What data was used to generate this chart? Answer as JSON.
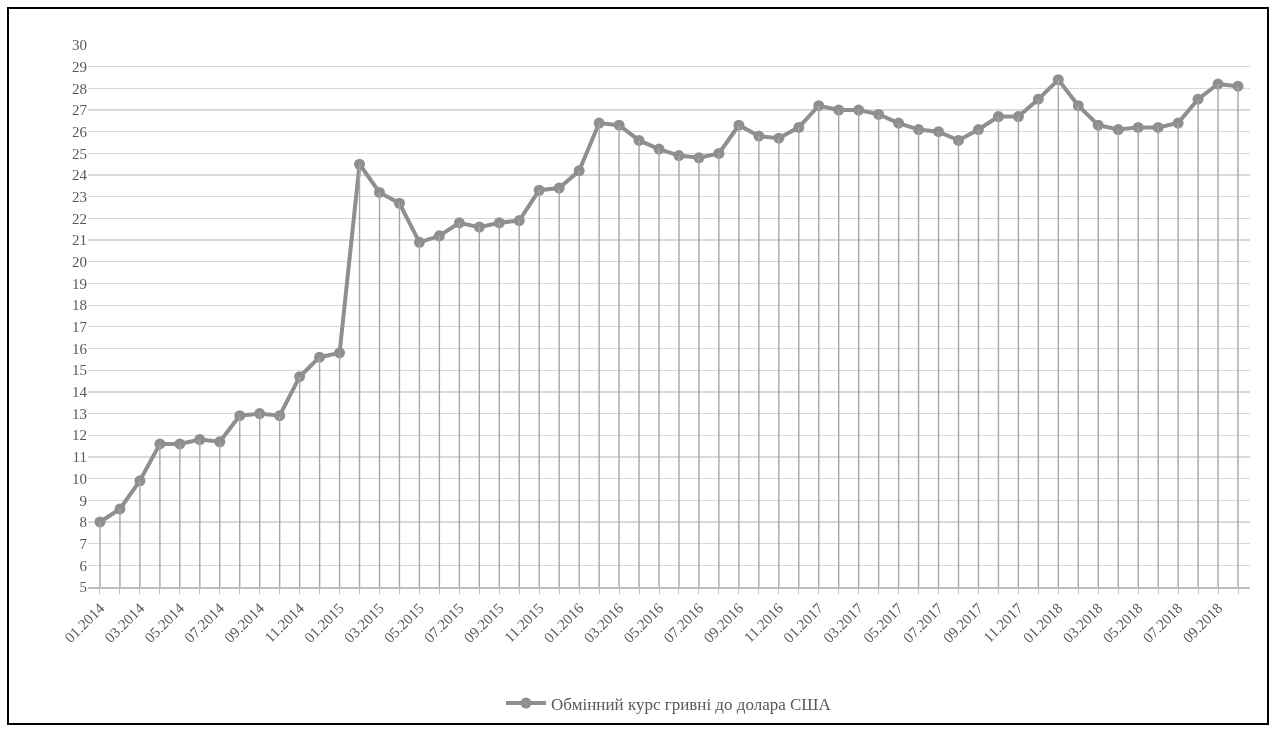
{
  "chart_data": {
    "type": "line",
    "categories": [
      "01.2014",
      null,
      "03.2014",
      null,
      "05.2014",
      null,
      "07.2014",
      null,
      "09.2014",
      null,
      "11.2014",
      null,
      "01.2015",
      null,
      "03.2015",
      null,
      "05.2015",
      null,
      "07.2015",
      null,
      "09.2015",
      null,
      "11.2015",
      null,
      "01.2016",
      null,
      "03.2016",
      null,
      "05.2016",
      null,
      "07.2016",
      null,
      "09.2016",
      null,
      "11.2016",
      null,
      "01.2017",
      null,
      "03.2017",
      null,
      "05.2017",
      null,
      "07.2017",
      null,
      "09.2017",
      null,
      "11.2017",
      null,
      "01.2018",
      null,
      "03.2018",
      null,
      "05.2018",
      null,
      "07.2018",
      null,
      "09.2018",
      null
    ],
    "series": [
      {
        "type": "bar",
        "color": "#a6a6a6",
        "values": [
          8.0,
          8.6,
          9.9,
          11.6,
          11.6,
          11.8,
          11.7,
          12.9,
          13.0,
          12.9,
          14.7,
          15.6,
          15.8,
          24.5,
          23.2,
          22.7,
          20.9,
          21.2,
          21.8,
          21.6,
          21.8,
          21.9,
          23.3,
          23.4,
          24.2,
          26.4,
          26.3,
          25.6,
          25.2,
          24.9,
          24.8,
          25.0,
          26.3,
          25.8,
          25.7,
          26.2,
          27.2,
          27.0,
          27.0,
          26.8,
          26.4,
          26.1,
          26.0,
          25.6,
          26.1,
          26.7,
          26.7,
          27.5,
          28.4,
          27.2,
          26.3,
          26.1,
          26.2,
          26.2,
          26.4,
          27.5,
          28.2,
          28.1
        ]
      },
      {
        "name": "Обмінний курс гривні до долара США",
        "color": "#8f8f8f",
        "values": [
          8.0,
          8.6,
          9.9,
          11.6,
          11.6,
          11.8,
          11.7,
          12.9,
          13.0,
          12.9,
          14.7,
          15.6,
          15.8,
          24.5,
          23.2,
          22.7,
          20.9,
          21.2,
          21.8,
          21.6,
          21.8,
          21.9,
          23.3,
          23.4,
          24.2,
          26.4,
          26.3,
          25.6,
          25.2,
          24.9,
          24.8,
          25.0,
          26.3,
          25.8,
          25.7,
          26.2,
          27.2,
          27.0,
          27.0,
          26.8,
          26.4,
          26.1,
          26.0,
          25.6,
          26.1,
          26.7,
          26.7,
          27.5,
          28.4,
          27.2,
          26.3,
          26.1,
          26.2,
          26.2,
          26.4,
          27.5,
          28.2,
          28.1
        ]
      }
    ],
    "ylim": [
      5,
      30
    ],
    "yticks": [
      5,
      6,
      7,
      8,
      9,
      10,
      11,
      12,
      13,
      14,
      15,
      16,
      17,
      18,
      19,
      20,
      21,
      22,
      23,
      24,
      25,
      26,
      27,
      28,
      29,
      30
    ],
    "grid": "y",
    "legend": "bottom",
    "marker": "circle"
  }
}
